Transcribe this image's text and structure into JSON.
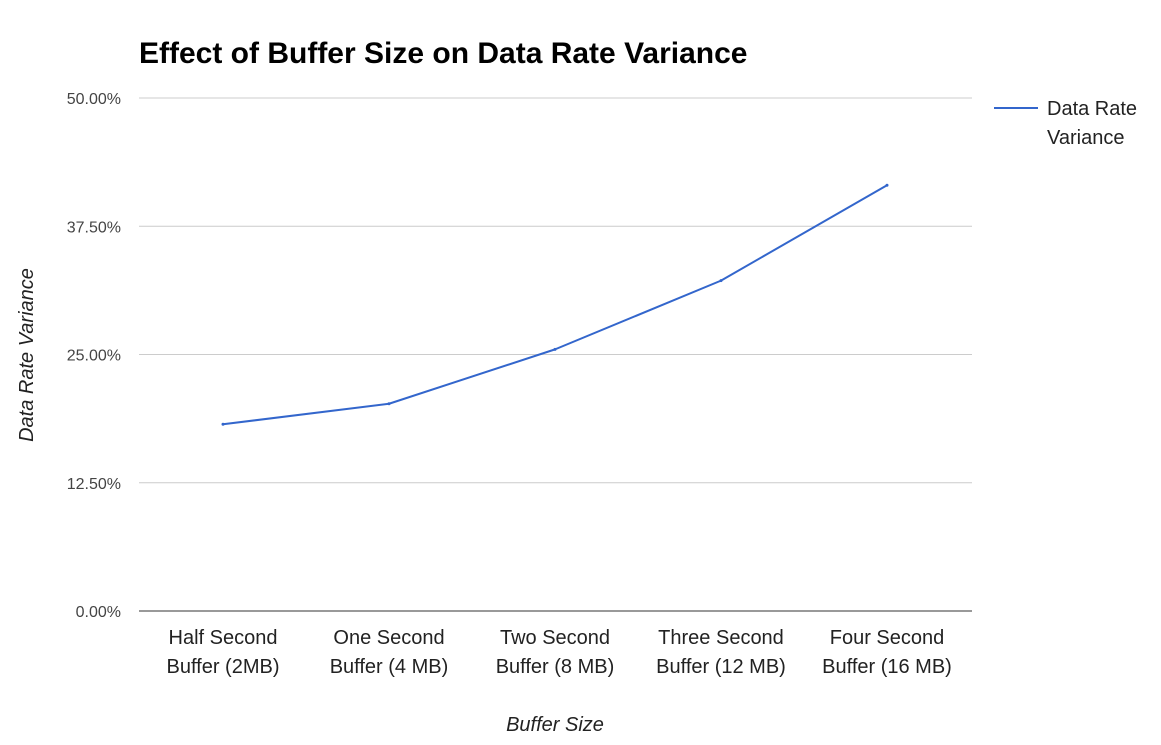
{
  "chart_data": {
    "type": "line",
    "title": "Effect of Buffer Size on Data Rate Variance",
    "xlabel": "Buffer Size",
    "ylabel": "Data Rate Variance",
    "categories": [
      [
        "Half Second",
        "Buffer (2MB)"
      ],
      [
        "One Second",
        "Buffer (4 MB)"
      ],
      [
        "Two Second",
        "Buffer (8 MB)"
      ],
      [
        "Three Second",
        "Buffer (12 MB)"
      ],
      [
        "Four Second",
        "Buffer (16 MB)"
      ]
    ],
    "series": [
      {
        "name": "Data Rate Variance",
        "color": "#3366cc",
        "values": [
          18.2,
          20.2,
          25.5,
          32.2,
          41.5
        ]
      }
    ],
    "yticks": [
      0,
      12.5,
      25,
      37.5,
      50
    ],
    "ytick_labels": [
      "0.00%",
      "12.50%",
      "25.00%",
      "37.50%",
      "50.00%"
    ],
    "ylim": [
      0,
      50
    ],
    "grid": true,
    "legend": {
      "placement": "right",
      "lines": [
        "Data Rate",
        "Variance"
      ]
    }
  }
}
